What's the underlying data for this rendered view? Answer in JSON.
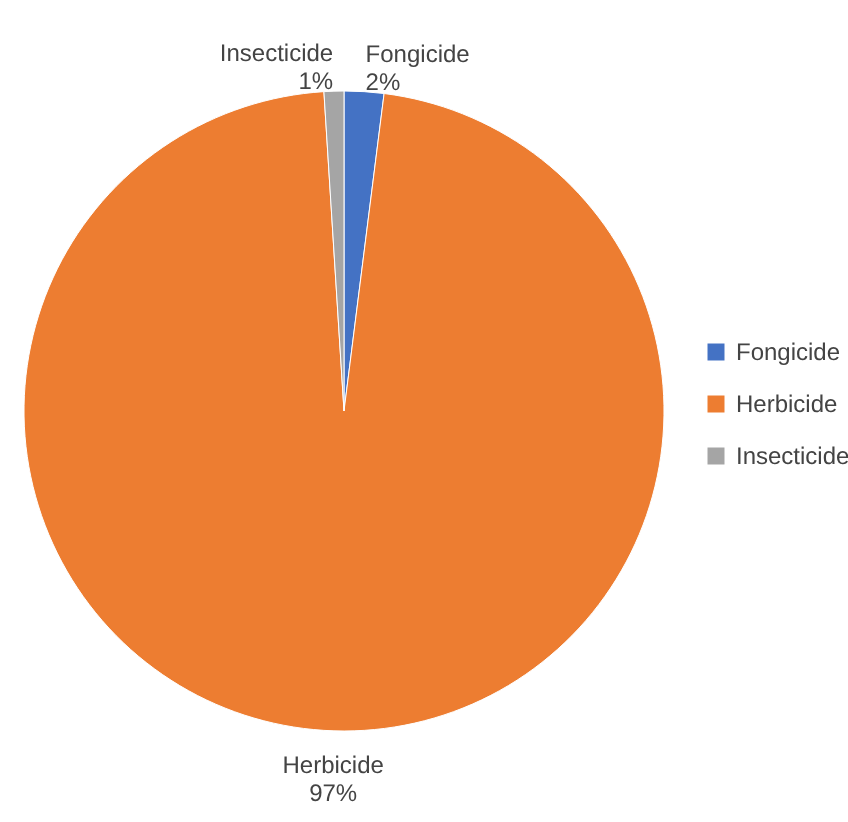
{
  "chart_data": {
    "type": "pie",
    "categories": [
      "Fongicide",
      "Herbicide",
      "Insecticide"
    ],
    "values": [
      2,
      97,
      1
    ],
    "colors": [
      "#4472c4",
      "#ed7d31",
      "#a5a5a5"
    ],
    "value_labels": [
      "2%",
      "97%",
      "1%"
    ],
    "legend": "right"
  }
}
